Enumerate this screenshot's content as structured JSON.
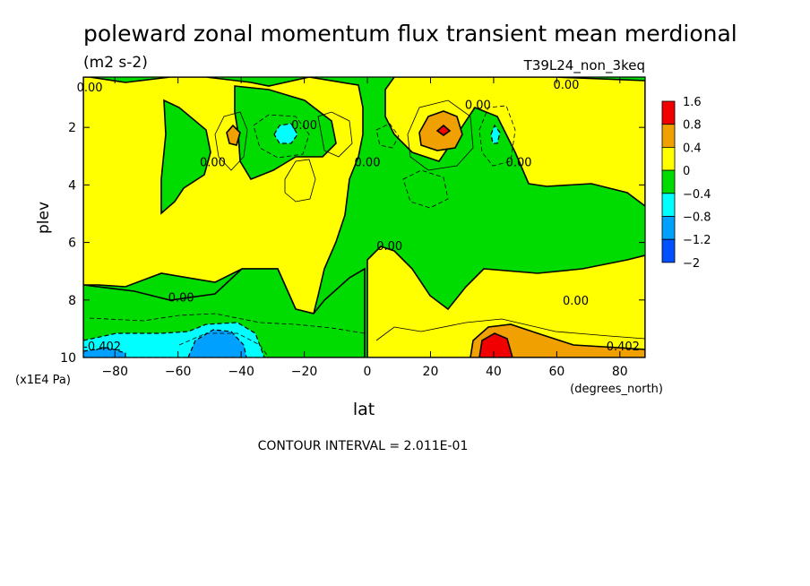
{
  "chart_data": {
    "type": "heatmap",
    "title": "poleward zonal momentum flux transient mean merdional",
    "units": "(m2 s-2)",
    "run_label": "T39L24_non_3keq",
    "xlabel": "lat",
    "x_units": "(degrees_north)",
    "ylabel": "plev",
    "y_units": "(x1E4 Pa)",
    "xlim": [
      -90,
      88
    ],
    "ylim": [
      10,
      0.25
    ],
    "x_ticks": [
      -80,
      -60,
      -40,
      -20,
      0,
      20,
      40,
      60,
      80
    ],
    "y_ticks": [
      2,
      4,
      6,
      8,
      10
    ],
    "colorbar": {
      "levels": [
        "1.6",
        "0.8",
        "0.4",
        "0",
        "-0.4",
        "-0.8",
        "-1.2",
        "-2"
      ],
      "colors": [
        "#f00000",
        "#f0a000",
        "#ffff00",
        "#00dc00",
        "#00ffff",
        "#00a0ff",
        "#0050ff"
      ]
    },
    "contour_labels": [
      {
        "text": "0.00",
        "x": -88,
        "y": 0.6
      },
      {
        "text": "0.00",
        "x": -49,
        "y": 3.2
      },
      {
        "text": "0.00",
        "x": -20,
        "y": 1.9
      },
      {
        "text": "0.00",
        "x": 0,
        "y": 3.2
      },
      {
        "text": "0.00",
        "x": 7,
        "y": 6.1
      },
      {
        "text": "0.00",
        "x": 35,
        "y": 1.2
      },
      {
        "text": "0.00",
        "x": 48,
        "y": 3.2
      },
      {
        "text": "0.00",
        "x": 63,
        "y": 0.5
      },
      {
        "text": "0.00",
        "x": -59,
        "y": 7.9
      },
      {
        "text": "0.00",
        "x": 66,
        "y": 8.0
      },
      {
        "text": "-0.402",
        "x": -84,
        "y": 9.6
      },
      {
        "text": "0.402",
        "x": 81,
        "y": 9.6
      }
    ],
    "footer": "CONTOUR INTERVAL = 2.011E-01"
  }
}
